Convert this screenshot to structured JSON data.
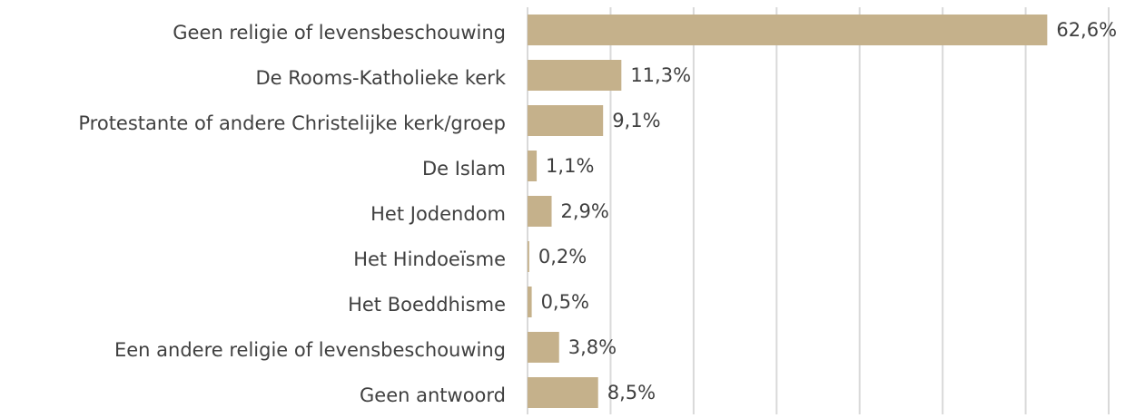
{
  "chart_data": {
    "type": "barh",
    "categories": [
      "Geen religie of levensbeschouwing",
      "De Rooms-Katholieke kerk",
      "Protestante of andere Christelijke kerk/groep",
      "De Islam",
      "Het Jodendom",
      "Het Hindoeïsme",
      "Het Boeddhisme",
      "Een andere religie of levensbeschouwing",
      "Geen antwoord"
    ],
    "values": [
      62.6,
      11.3,
      9.1,
      1.1,
      2.9,
      0.2,
      0.5,
      3.8,
      8.5
    ],
    "value_labels": [
      "62,6%",
      "11,3%",
      "9,1%",
      "1,1%",
      "2,9%",
      "0,2%",
      "0,5%",
      "3,8%",
      "8,5%"
    ],
    "color": "#c5b18b",
    "xlim": [
      0,
      70
    ],
    "xticks": [
      0,
      10,
      20,
      30,
      40,
      50,
      60,
      70
    ],
    "grid": true
  }
}
